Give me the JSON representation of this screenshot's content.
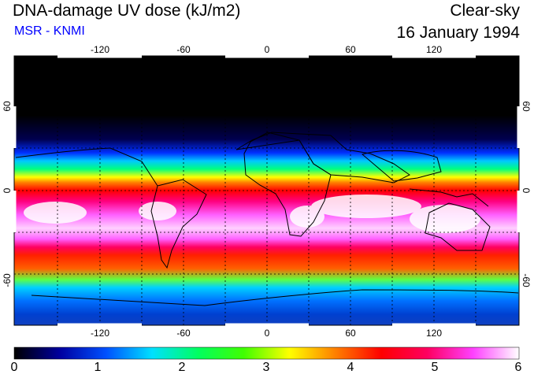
{
  "header": {
    "title": "DNA-damage UV dose (kJ/m2)",
    "source": "MSR - KNMI",
    "condition": "Clear-sky",
    "date": "16 January 1994"
  },
  "map": {
    "lon_ticks": [
      "-120",
      "-60",
      "0",
      "60",
      "120"
    ],
    "lat_ticks": [
      "60",
      "0",
      "-60"
    ]
  },
  "colorbar": {
    "labels": [
      "0",
      "1",
      "2",
      "3",
      "4",
      "5",
      "6"
    ],
    "stops": [
      "#000000",
      "#0000a0",
      "#0050ff",
      "#00e0ff",
      "#00ff60",
      "#40ff00",
      "#ffff00",
      "#ff8000",
      "#ff0000",
      "#ff0060",
      "#ff40ff",
      "#ffffff"
    ]
  }
}
